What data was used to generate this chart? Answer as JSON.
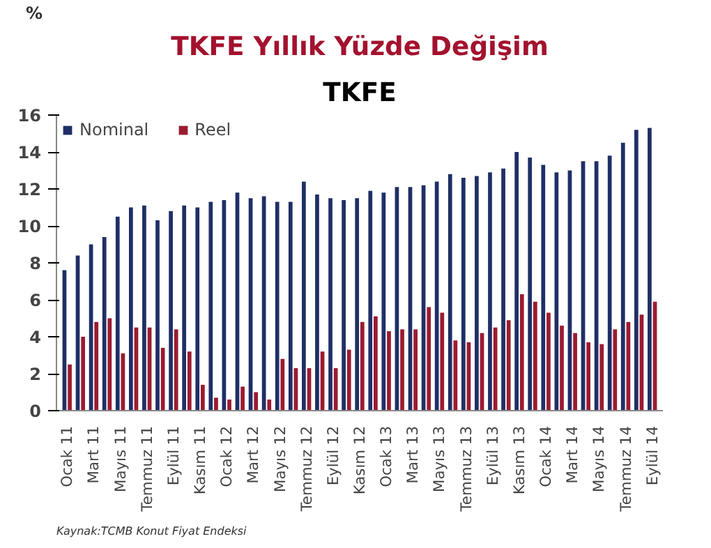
{
  "chart_data": {
    "type": "bar",
    "title": "TKFE Yıllık Yüzde Değişim",
    "subtitle": "TKFE",
    "ylabel": "%",
    "categories": [
      "Ocak 11",
      null,
      "Mart 11",
      null,
      "Mayıs 11",
      null,
      "Temmuz 11",
      null,
      "Eylül 11",
      null,
      "Kasım 11",
      null,
      "Ocak 12",
      null,
      "Mart 12",
      null,
      "Mayıs 12",
      null,
      "Temmuz 12",
      null,
      "Eylül 12",
      null,
      "Kasım 12",
      null,
      "Ocak 13",
      null,
      "Mart 13",
      null,
      "Mayıs 13",
      null,
      "Temmuz 13",
      null,
      "Eylül 13",
      null,
      "Kasım 13",
      null,
      "Ocak 14",
      null,
      "Mart 14",
      null,
      "Mayıs 14",
      null,
      "Temmuz 14",
      null,
      "Eylül 14"
    ],
    "series": [
      {
        "name": "Nominal",
        "color": "#1f2f66",
        "values": [
          7.6,
          8.4,
          9.0,
          9.4,
          10.5,
          11.0,
          11.1,
          10.3,
          10.8,
          11.1,
          11.0,
          11.3,
          11.4,
          11.8,
          11.5,
          11.6,
          11.3,
          11.3,
          12.4,
          11.7,
          11.5,
          11.4,
          11.5,
          11.9,
          11.8,
          12.1,
          12.1,
          12.2,
          12.4,
          12.8,
          12.6,
          12.7,
          12.9,
          13.1,
          14.0,
          13.7,
          13.3,
          12.9,
          13.0,
          13.5,
          13.5,
          13.8,
          14.5,
          15.2,
          15.3
        ]
      },
      {
        "name": "Reel",
        "color": "#9b1b30",
        "values": [
          2.5,
          4.0,
          4.8,
          5.0,
          3.1,
          4.5,
          4.5,
          3.4,
          4.4,
          3.2,
          1.4,
          0.7,
          0.6,
          1.3,
          1.0,
          0.6,
          2.8,
          2.3,
          2.3,
          3.2,
          2.3,
          3.3,
          4.8,
          5.1,
          4.3,
          4.4,
          4.4,
          5.6,
          5.3,
          3.8,
          3.7,
          4.2,
          4.5,
          4.9,
          6.3,
          5.9,
          5.3,
          4.6,
          4.2,
          3.7,
          3.6,
          4.4,
          4.8,
          5.2,
          5.9
        ]
      }
    ],
    "ylim": [
      0,
      16
    ],
    "yticks": [
      0,
      2,
      4,
      6,
      8,
      10,
      12,
      14,
      16
    ],
    "grid": false,
    "legend": "top left",
    "annotations": [
      "Kaynak:TCMB Konut Fiyat Endeksi"
    ]
  }
}
